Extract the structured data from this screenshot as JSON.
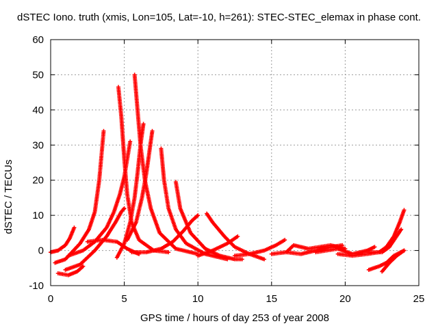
{
  "chart_data": {
    "type": "scatter",
    "title": "dSTEC Iono. truth (xmis, Lon=105, Lat=-10, h=261): STEC-STEC_elemax in phase cont.",
    "xlabel": "GPS time / hours of day 253 of year 2008",
    "ylabel": "dSTEC  / TECUs",
    "xlim": [
      0,
      25
    ],
    "ylim": [
      -10,
      60
    ],
    "xticks": [
      0,
      5,
      10,
      15,
      20,
      25
    ],
    "yticks": [
      -10,
      0,
      10,
      20,
      30,
      40,
      50,
      60
    ],
    "grid": true,
    "marker": "+",
    "color": "#ff0000",
    "series": [
      {
        "x": [
          0.3,
          1.0,
          2.0,
          2.6,
          3.0,
          3.3,
          3.6
        ],
        "y": [
          -3.5,
          -2.5,
          2.0,
          6.0,
          11.0,
          20.0,
          34.0
        ]
      },
      {
        "x": [
          0.0,
          0.5,
          1.0,
          1.3,
          1.6
        ],
        "y": [
          -0.5,
          0.0,
          1.5,
          3.5,
          6.5
        ]
      },
      {
        "x": [
          0.5,
          1.2,
          1.8,
          2.2
        ],
        "y": [
          -6.5,
          -7.0,
          -6.0,
          -4.5
        ]
      },
      {
        "x": [
          1.0,
          2.0,
          3.0,
          3.8,
          4.4,
          4.8,
          5.0
        ],
        "y": [
          -5.5,
          -4.0,
          0.0,
          4.0,
          8.0,
          11.0,
          12.0
        ]
      },
      {
        "x": [
          4.6,
          4.8,
          5.0,
          5.2,
          5.5,
          6.0,
          7.0,
          8.0
        ],
        "y": [
          46.5,
          38.0,
          26.0,
          16.0,
          8.0,
          3.0,
          0.0,
          -0.5
        ]
      },
      {
        "x": [
          1.2,
          2.2,
          3.0,
          3.8,
          4.3,
          4.7,
          5.0,
          5.2,
          5.4
        ],
        "y": [
          -1.5,
          0.0,
          2.5,
          6.5,
          11.0,
          16.0,
          21.0,
          26.0,
          31.0
        ]
      },
      {
        "x": [
          5.7,
          5.9,
          6.1,
          6.4,
          6.8,
          7.4,
          8.5,
          10.0
        ],
        "y": [
          50.0,
          40.0,
          30.0,
          20.0,
          12.0,
          5.0,
          0.5,
          -1.0
        ]
      },
      {
        "x": [
          4.5,
          5.0,
          5.4,
          5.7,
          5.9,
          6.1,
          6.3
        ],
        "y": [
          -2.0,
          2.0,
          8.0,
          15.0,
          22.0,
          30.0,
          36.0
        ]
      },
      {
        "x": [
          5.2,
          5.8,
          6.2,
          6.5,
          6.7,
          6.9
        ],
        "y": [
          3.0,
          8.0,
          15.0,
          22.0,
          28.0,
          34.0
        ]
      },
      {
        "x": [
          2.5,
          3.5,
          4.5,
          5.2,
          5.7,
          6.0
        ],
        "y": [
          2.5,
          3.0,
          2.5,
          0.5,
          -0.5,
          -1.0
        ]
      },
      {
        "x": [
          7.5,
          7.7,
          8.0,
          8.5,
          9.2,
          10.5,
          12.0
        ],
        "y": [
          29.0,
          20.0,
          12.0,
          6.0,
          2.0,
          -1.0,
          -2.5
        ]
      },
      {
        "x": [
          8.5,
          8.8,
          9.5,
          10.5,
          11.5,
          12.5,
          13.0
        ],
        "y": [
          19.5,
          12.0,
          5.0,
          0.5,
          -1.5,
          -2.5,
          -2.5
        ]
      },
      {
        "x": [
          5.5,
          6.5,
          7.5,
          8.3,
          9.0,
          9.6,
          10.0
        ],
        "y": [
          -0.5,
          -0.5,
          0.5,
          2.5,
          5.5,
          8.5,
          10.0
        ]
      },
      {
        "x": [
          10.6,
          11.0,
          11.8,
          12.5,
          13.5,
          14.5
        ],
        "y": [
          10.5,
          8.0,
          4.0,
          1.0,
          -1.0,
          -2.5
        ]
      },
      {
        "x": [
          10.0,
          11.0,
          12.0,
          12.7
        ],
        "y": [
          -1.5,
          0.0,
          2.0,
          4.0
        ]
      },
      {
        "x": [
          12.5,
          13.5,
          14.5,
          15.3,
          15.9
        ],
        "y": [
          -1.5,
          -1.0,
          0.0,
          1.5,
          3.0
        ]
      },
      {
        "x": [
          15.0,
          16.0,
          16.5,
          17.5,
          19.0,
          20.0
        ],
        "y": [
          -1.0,
          -0.5,
          1.5,
          0.5,
          1.5,
          0.5
        ]
      },
      {
        "x": [
          16.0,
          17.0,
          18.0,
          19.0,
          19.8
        ],
        "y": [
          -0.5,
          -1.0,
          0.0,
          1.0,
          1.5
        ]
      },
      {
        "x": [
          18.0,
          19.5,
          20.5,
          21.5,
          22.0
        ],
        "y": [
          -0.5,
          0.5,
          -1.0,
          0.0,
          1.0
        ]
      },
      {
        "x": [
          19.5,
          20.5,
          21.5,
          22.3,
          22.8,
          23.3,
          23.7,
          24.0
        ],
        "y": [
          -1.0,
          -1.5,
          -1.0,
          -0.5,
          1.0,
          4.0,
          8.0,
          11.5
        ]
      },
      {
        "x": [
          21.5,
          22.5,
          23.0,
          23.4,
          23.8
        ],
        "y": [
          -0.5,
          -0.5,
          1.0,
          3.5,
          6.0
        ]
      },
      {
        "x": [
          21.6,
          22.3,
          22.8,
          23.3,
          24.0
        ],
        "y": [
          -5.5,
          -4.5,
          -3.5,
          -1.5,
          0.0
        ]
      },
      {
        "x": [
          22.5,
          23.0,
          23.5,
          24.0
        ],
        "y": [
          -6.0,
          -3.5,
          -1.5,
          0.0
        ]
      }
    ]
  }
}
